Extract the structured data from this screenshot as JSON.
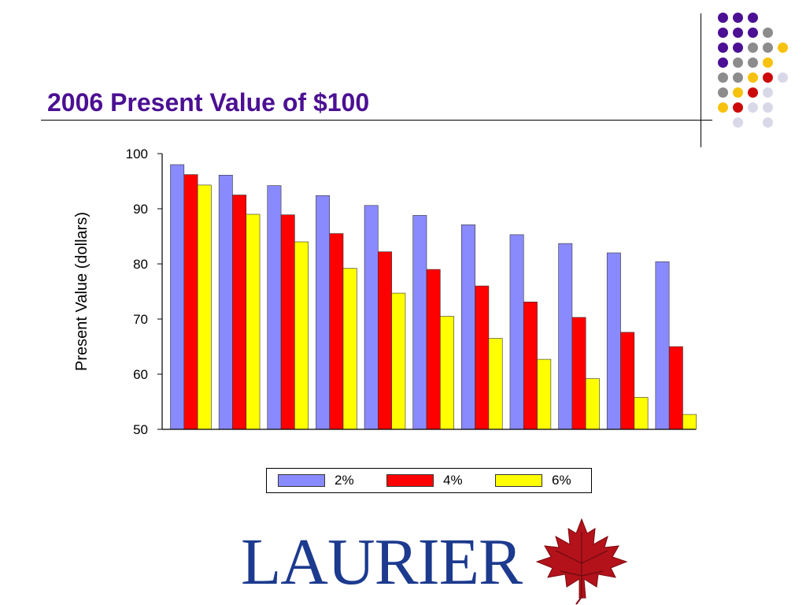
{
  "slide": {
    "title": "2006 Present Value of $100"
  },
  "logo": {
    "wordmark": "LAURIER",
    "leaf": "maple-leaf-icon"
  },
  "decor": {
    "dot_grid_colors": [
      "#4b1093",
      "#8c8c8c",
      "#f6c20d",
      "#cc0a0a",
      "#d8d8e8"
    ]
  },
  "chart_data": {
    "type": "bar",
    "title": "",
    "xlabel": "",
    "ylabel": "Present Value (dollars)",
    "ylim": [
      50,
      100
    ],
    "yticks": [
      50,
      60,
      70,
      80,
      90,
      100
    ],
    "grid": false,
    "legend_position": "bottom",
    "categories": [
      "",
      "",
      "",
      "",
      "",
      "",
      "",
      "",
      "",
      "",
      ""
    ],
    "series": [
      {
        "name": "2%",
        "color": "#8a8aff",
        "values": [
          98.0,
          96.1,
          94.2,
          92.4,
          90.6,
          88.8,
          87.1,
          85.3,
          83.7,
          82.0,
          80.4
        ]
      },
      {
        "name": "4%",
        "color": "#ff0000",
        "values": [
          96.2,
          92.5,
          88.9,
          85.5,
          82.2,
          79.0,
          76.0,
          73.1,
          70.3,
          67.6,
          65.0
        ]
      },
      {
        "name": "6%",
        "color": "#ffff00",
        "values": [
          94.3,
          89.0,
          84.0,
          79.2,
          74.7,
          70.5,
          66.5,
          62.7,
          59.2,
          55.8,
          52.7
        ]
      }
    ],
    "legend": [
      {
        "label": "2%",
        "color": "#8a8aff"
      },
      {
        "label": "4%",
        "color": "#ff0000"
      },
      {
        "label": "6%",
        "color": "#ffff00"
      }
    ]
  }
}
